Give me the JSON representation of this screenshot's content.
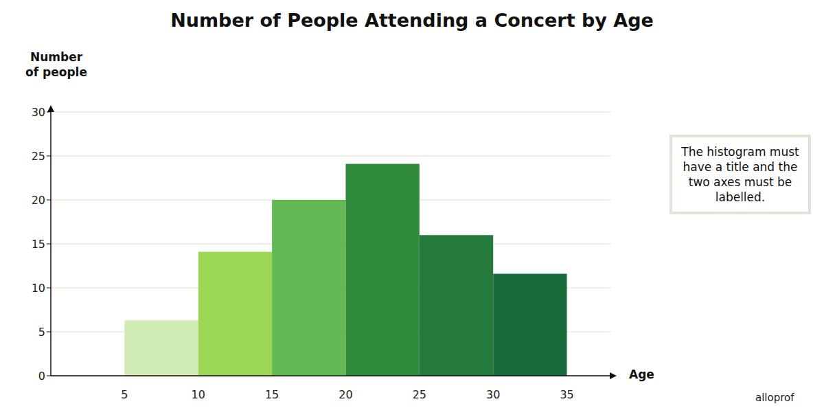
{
  "chart_data": {
    "type": "histogram",
    "title": "Number of People Attending a Concert by Age",
    "x_label": "Age",
    "y_label": "Number of people",
    "bins": [
      5,
      10,
      15,
      20,
      25,
      30,
      35
    ],
    "values": [
      6.3,
      14.1,
      20,
      24.1,
      16,
      11.6
    ],
    "colors": [
      "#d0ebb3",
      "#9bd655",
      "#63b953",
      "#2f8a3c",
      "#237a3a",
      "#1a6b3c"
    ],
    "xlim": [
      0,
      38
    ],
    "xticks": [
      5,
      10,
      15,
      20,
      25,
      30,
      35
    ],
    "ylim": [
      0,
      30
    ],
    "yticks": [
      0,
      5,
      10,
      15,
      20,
      25,
      30
    ],
    "grid": true,
    "annotation": "The histogram must have a title and the two axes must be labelled.",
    "watermark": "alloprof"
  }
}
